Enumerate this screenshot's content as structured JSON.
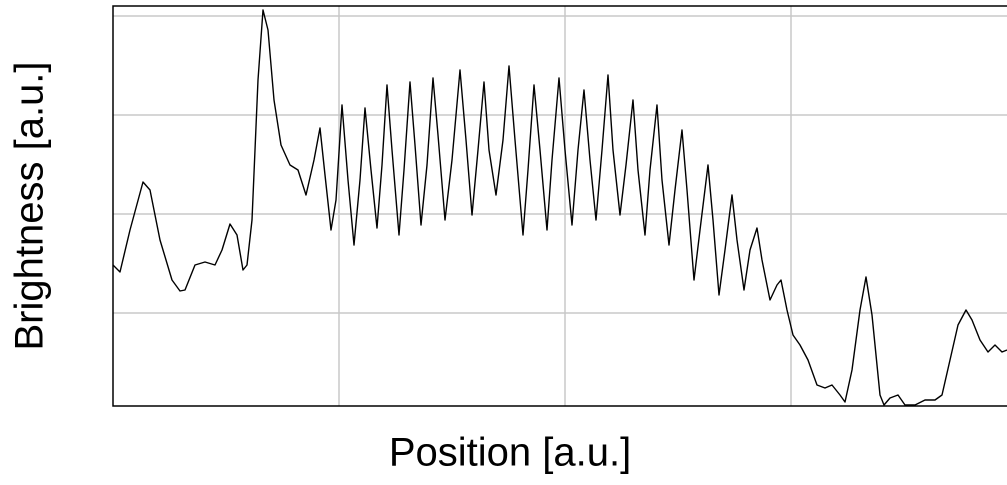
{
  "chart_data": {
    "type": "line",
    "x_label": "Position [a.u.]",
    "y_label": "Brightness [a.u.]",
    "xlim": [
      0,
      894
    ],
    "ylim": [
      0,
      400
    ],
    "xticks": [
      226,
      452,
      678
    ],
    "yticks": [
      93,
      192,
      291,
      390
    ],
    "grid": true,
    "series": [
      {
        "color": "#000000",
        "x": [
          0,
          7,
          17,
          30,
          37,
          47,
          59,
          67,
          72,
          82,
          92,
          102,
          109,
          117,
          124,
          130,
          134,
          139,
          145,
          150,
          155,
          161,
          168,
          177,
          185,
          193,
          201,
          207,
          212,
          218,
          223,
          229,
          235,
          241,
          247,
          252,
          258,
          264,
          269,
          274,
          279,
          286,
          291,
          297,
          302,
          308,
          314,
          320,
          325,
          332,
          339,
          347,
          353,
          359,
          365,
          371,
          376,
          383,
          390,
          396,
          402,
          410,
          415,
          421,
          427,
          434,
          439,
          446,
          452,
          459,
          465,
          471,
          477,
          483,
          489,
          495,
          500,
          507,
          513,
          520,
          525,
          532,
          537,
          544,
          549,
          556,
          562,
          569,
          574,
          581,
          587,
          595,
          600,
          606,
          612,
          619,
          624,
          631,
          637,
          644,
          649,
          657,
          664,
          668,
          674,
          680,
          687,
          695,
          704,
          712,
          719,
          727,
          732,
          739,
          747,
          753,
          759,
          767,
          771,
          777,
          785,
          792,
          802,
          812,
          822,
          829,
          837,
          845,
          853,
          859,
          867,
          875,
          882,
          889,
          894
        ],
        "values": [
          141,
          134,
          176,
          224,
          216,
          166,
          126,
          115,
          116,
          141,
          144,
          141,
          156,
          182,
          171,
          136,
          141,
          186,
          326,
          396,
          376,
          306,
          261,
          241,
          236,
          211,
          246,
          278,
          231,
          176,
          206,
          301,
          226,
          161,
          226,
          298,
          236,
          178,
          241,
          321,
          256,
          171,
          236,
          324,
          261,
          181,
          241,
          328,
          271,
          186,
          246,
          336,
          266,
          191,
          256,
          324,
          256,
          211,
          266,
          340,
          266,
          171,
          236,
          321,
          256,
          176,
          246,
          328,
          256,
          181,
          256,
          316,
          246,
          186,
          256,
          331,
          256,
          191,
          241,
          306,
          236,
          171,
          236,
          301,
          226,
          161,
          216,
          276,
          216,
          126,
          176,
          241,
          186,
          111,
          156,
          211,
          166,
          116,
          156,
          178,
          146,
          106,
          121,
          126,
          96,
          71,
          61,
          46,
          21,
          18,
          21,
          11,
          4,
          36,
          96,
          129,
          91,
          11,
          1,
          8,
          11,
          1,
          1,
          6,
          6,
          11,
          46,
          81,
          96,
          86,
          66,
          54,
          61,
          54,
          56
        ]
      }
    ]
  }
}
